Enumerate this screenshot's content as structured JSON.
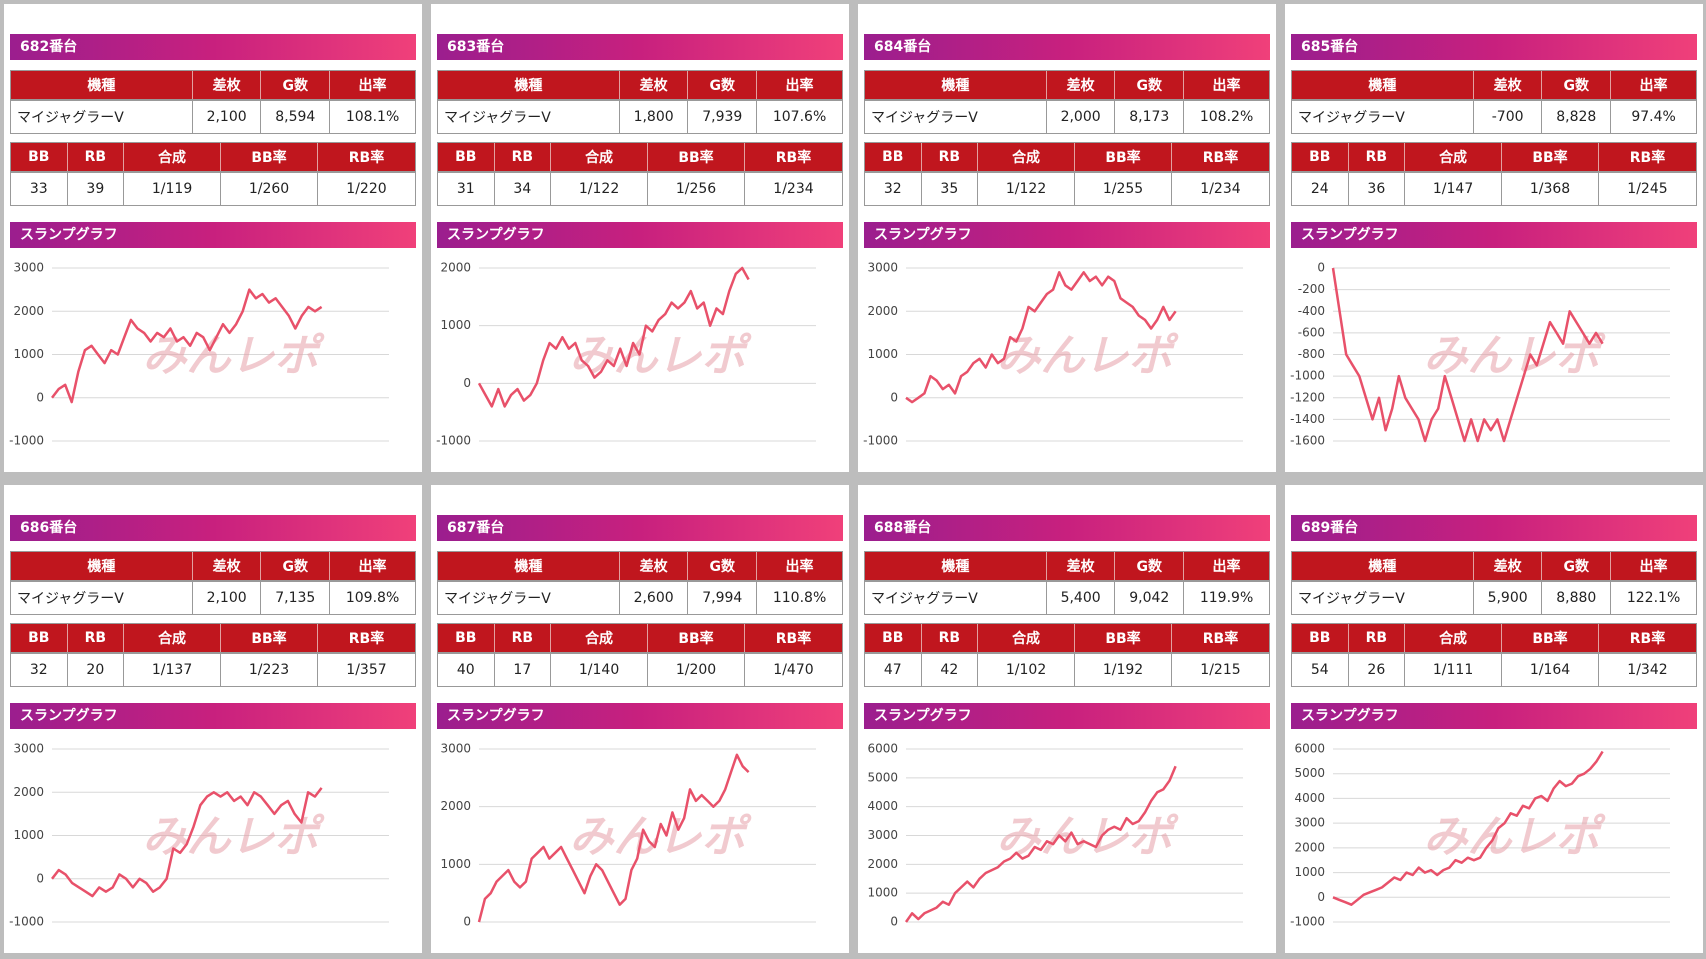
{
  "table_headers": [
    "機種",
    "差枚",
    "G数",
    "出率"
  ],
  "stats_headers": [
    "BB",
    "RB",
    "合成",
    "BB率",
    "RB率"
  ],
  "graph_title": "スランプグラフ",
  "watermark": "みんレポ",
  "panels": [
    {
      "title": "682番台",
      "row": [
        "マイジャグラーV",
        "2,100",
        "8,594",
        "108.1%"
      ],
      "stats": [
        "33",
        "39",
        "1/119",
        "1/260",
        "1/220"
      ]
    },
    {
      "title": "683番台",
      "row": [
        "マイジャグラーV",
        "1,800",
        "7,939",
        "107.6%"
      ],
      "stats": [
        "31",
        "34",
        "1/122",
        "1/256",
        "1/234"
      ]
    },
    {
      "title": "684番台",
      "row": [
        "マイジャグラーV",
        "2,000",
        "8,173",
        "108.2%"
      ],
      "stats": [
        "32",
        "35",
        "1/122",
        "1/255",
        "1/234"
      ]
    },
    {
      "title": "685番台",
      "row": [
        "マイジャグラーV",
        "-700",
        "8,828",
        "97.4%"
      ],
      "stats": [
        "24",
        "36",
        "1/147",
        "1/368",
        "1/245"
      ]
    },
    {
      "title": "686番台",
      "row": [
        "マイジャグラーV",
        "2,100",
        "7,135",
        "109.8%"
      ],
      "stats": [
        "32",
        "20",
        "1/137",
        "1/223",
        "1/357"
      ]
    },
    {
      "title": "687番台",
      "row": [
        "マイジャグラーV",
        "2,600",
        "7,994",
        "110.8%"
      ],
      "stats": [
        "40",
        "17",
        "1/140",
        "1/200",
        "1/470"
      ]
    },
    {
      "title": "688番台",
      "row": [
        "マイジャグラーV",
        "5,400",
        "9,042",
        "119.9%"
      ],
      "stats": [
        "47",
        "42",
        "1/102",
        "1/192",
        "1/215"
      ]
    },
    {
      "title": "689番台",
      "row": [
        "マイジャグラーV",
        "5,900",
        "8,880",
        "122.1%"
      ],
      "stats": [
        "54",
        "26",
        "1/111",
        "1/164",
        "1/342"
      ]
    }
  ],
  "chart_data": [
    {
      "type": "line",
      "color": "#e8516a",
      "grid": true,
      "ylim": [
        -1000,
        3000
      ],
      "yticks": [
        3000,
        2000,
        1000,
        0,
        -1000
      ],
      "values": [
        0,
        200,
        300,
        -100,
        600,
        1100,
        1200,
        1000,
        800,
        1100,
        1000,
        1400,
        1800,
        1600,
        1500,
        1300,
        1500,
        1400,
        1600,
        1300,
        1400,
        1200,
        1500,
        1400,
        1100,
        1400,
        1700,
        1500,
        1700,
        2000,
        2500,
        2300,
        2400,
        2200,
        2300,
        2100,
        1900,
        1600,
        1900,
        2100,
        2000,
        2100
      ]
    },
    {
      "type": "line",
      "color": "#e8516a",
      "grid": true,
      "ylim": [
        -1000,
        2000
      ],
      "yticks": [
        2000,
        1000,
        0,
        -1000
      ],
      "values": [
        0,
        -200,
        -400,
        -100,
        -400,
        -200,
        -100,
        -300,
        -200,
        0,
        400,
        700,
        600,
        800,
        600,
        700,
        400,
        300,
        100,
        200,
        400,
        300,
        600,
        300,
        700,
        500,
        1000,
        900,
        1100,
        1200,
        1400,
        1300,
        1400,
        1600,
        1300,
        1400,
        1000,
        1300,
        1200,
        1600,
        1900,
        2000,
        1800
      ]
    },
    {
      "type": "line",
      "color": "#e8516a",
      "grid": true,
      "ylim": [
        -1000,
        3000
      ],
      "yticks": [
        3000,
        2000,
        1000,
        0,
        -1000
      ],
      "values": [
        0,
        -100,
        0,
        100,
        500,
        400,
        200,
        300,
        100,
        500,
        600,
        800,
        900,
        700,
        1000,
        800,
        900,
        1400,
        1300,
        1600,
        2100,
        2000,
        2200,
        2400,
        2500,
        2900,
        2600,
        2500,
        2700,
        2900,
        2700,
        2800,
        2600,
        2800,
        2700,
        2300,
        2200,
        2100,
        1900,
        1800,
        1600,
        1800,
        2100,
        1800,
        2000
      ]
    },
    {
      "type": "line",
      "color": "#e8516a",
      "grid": true,
      "ylim": [
        -1600,
        0
      ],
      "yticks": [
        0,
        -200,
        -400,
        -600,
        -800,
        -1000,
        -1200,
        -1400,
        -1600
      ],
      "values": [
        0,
        -400,
        -800,
        -900,
        -1000,
        -1200,
        -1400,
        -1200,
        -1500,
        -1300,
        -1000,
        -1200,
        -1300,
        -1400,
        -1600,
        -1400,
        -1300,
        -1000,
        -1200,
        -1400,
        -1600,
        -1400,
        -1600,
        -1400,
        -1500,
        -1400,
        -1600,
        -1400,
        -1200,
        -1000,
        -800,
        -900,
        -700,
        -500,
        -600,
        -700,
        -400,
        -500,
        -600,
        -700,
        -600,
        -700
      ]
    },
    {
      "type": "line",
      "color": "#e8516a",
      "grid": true,
      "ylim": [
        -1000,
        3000
      ],
      "yticks": [
        3000,
        2000,
        1000,
        0,
        -1000
      ],
      "values": [
        0,
        200,
        100,
        -100,
        -200,
        -300,
        -400,
        -200,
        -300,
        -200,
        100,
        0,
        -200,
        0,
        -100,
        -300,
        -200,
        0,
        700,
        600,
        800,
        1200,
        1700,
        1900,
        2000,
        1900,
        2000,
        1800,
        1900,
        1700,
        2000,
        1900,
        1700,
        1500,
        1700,
        1800,
        1500,
        1300,
        2000,
        1900,
        2100
      ]
    },
    {
      "type": "line",
      "color": "#e8516a",
      "grid": true,
      "ylim": [
        0,
        3000
      ],
      "yticks": [
        3000,
        2000,
        1000,
        0
      ],
      "values": [
        0,
        400,
        500,
        700,
        800,
        900,
        700,
        600,
        700,
        1100,
        1200,
        1300,
        1100,
        1200,
        1300,
        1100,
        900,
        700,
        500,
        800,
        1000,
        900,
        700,
        500,
        300,
        400,
        900,
        1100,
        1600,
        1400,
        1300,
        1700,
        1500,
        1900,
        1600,
        1800,
        2300,
        2100,
        2200,
        2100,
        2000,
        2100,
        2300,
        2600,
        2900,
        2700,
        2600
      ]
    },
    {
      "type": "line",
      "color": "#e8516a",
      "grid": true,
      "ylim": [
        0,
        6000
      ],
      "yticks": [
        6000,
        5000,
        4000,
        3000,
        2000,
        1000,
        0
      ],
      "values": [
        0,
        300,
        100,
        300,
        400,
        500,
        700,
        600,
        1000,
        1200,
        1400,
        1200,
        1500,
        1700,
        1800,
        1900,
        2100,
        2200,
        2400,
        2200,
        2300,
        2600,
        2500,
        2800,
        2700,
        3000,
        2800,
        3100,
        2700,
        2800,
        2700,
        2600,
        3000,
        3200,
        3300,
        3200,
        3600,
        3400,
        3500,
        3800,
        4200,
        4500,
        4600,
        4900,
        5400
      ]
    },
    {
      "type": "line",
      "color": "#e8516a",
      "grid": true,
      "ylim": [
        -1000,
        6000
      ],
      "yticks": [
        6000,
        5000,
        4000,
        3000,
        2000,
        1000,
        0,
        -1000
      ],
      "values": [
        0,
        -100,
        -200,
        -300,
        -100,
        100,
        200,
        300,
        400,
        600,
        800,
        700,
        1000,
        900,
        1200,
        1000,
        1100,
        900,
        1100,
        1200,
        1500,
        1400,
        1600,
        1500,
        1600,
        2000,
        2300,
        2800,
        3000,
        3400,
        3300,
        3700,
        3600,
        4000,
        4100,
        3900,
        4400,
        4700,
        4500,
        4600,
        4900,
        5000,
        5200,
        5500,
        5900
      ]
    }
  ]
}
